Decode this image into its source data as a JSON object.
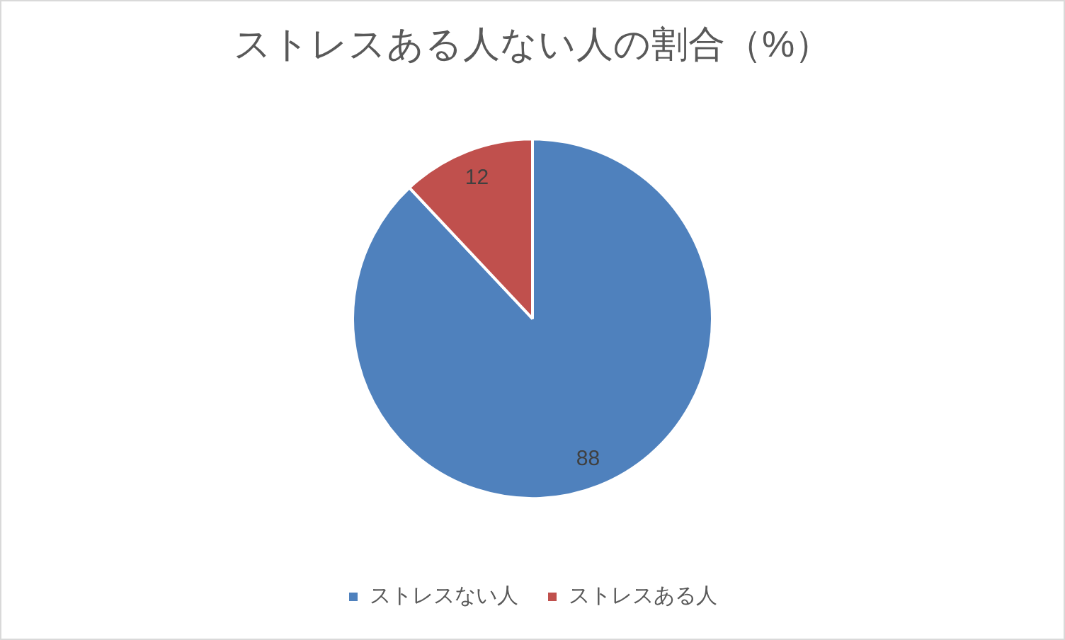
{
  "chart_data": {
    "type": "pie",
    "title": "ストレスある人ない人の割合（%）",
    "categories": [
      "ストレスない人",
      "ストレスある人"
    ],
    "values": [
      88,
      12
    ],
    "colors": [
      "#4f81bd",
      "#c0504d"
    ],
    "data_labels": true,
    "legend": "bottom"
  }
}
